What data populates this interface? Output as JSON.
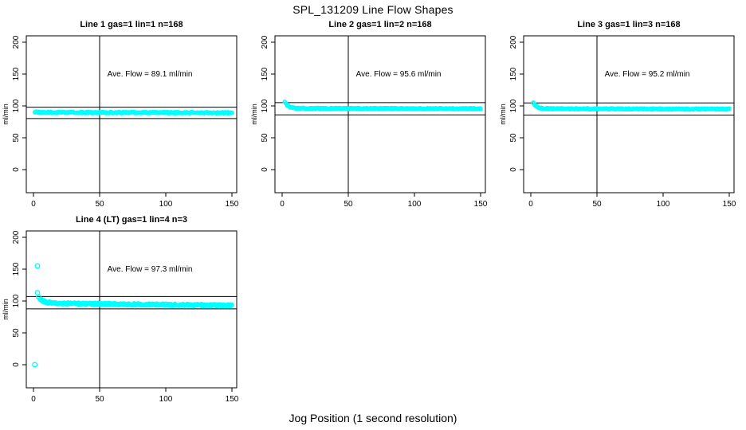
{
  "page": {
    "main_title": "SPL_131209  Line Flow Shapes",
    "outer_xlabel": "Jog Position (1 second resolution)",
    "background_color": "#ffffff"
  },
  "style": {
    "point_color": "#00ffff",
    "line_color": "#000000",
    "text_color": "#000000"
  },
  "axes": {
    "x_ticks": [
      0,
      50,
      100,
      150
    ],
    "y_ticks": [
      0,
      50,
      100,
      150,
      200
    ],
    "y_axis_label": "ml/min",
    "x_domain": [
      -5.5,
      154
    ],
    "y_domain": [
      -36,
      210
    ],
    "grid": false,
    "legend": "none"
  },
  "chart_data": [
    {
      "type": "scatter",
      "title": "Line 1 gas=1 lin=1 n=168",
      "line": 1,
      "gas": 1,
      "lin": 1,
      "n": 168,
      "annotation": "Ave. Flow =  89.1  ml/min",
      "ave_flow_ml_min": 89.1,
      "ylabel": "ml/min",
      "x_ticks": [
        0,
        50,
        100,
        150
      ],
      "y_ticks": [
        0,
        50,
        100,
        150,
        200
      ],
      "vline_x": 50,
      "hlines_y": [
        98.0,
        80.2
      ],
      "marker": "open-circle",
      "series": {
        "name": "flow",
        "x_start": 1,
        "x_end": 150,
        "x_step": 1,
        "start_value": 91,
        "settle_value": 89.8,
        "decay": 2,
        "drift_per_x": -0.004,
        "noise": 1.0,
        "passes": 2
      },
      "outliers": []
    },
    {
      "type": "scatter",
      "title": "Line 2 gas=1 lin=2 n=168",
      "line": 2,
      "gas": 1,
      "lin": 2,
      "n": 168,
      "annotation": "Ave. Flow =  95.6  ml/min",
      "ave_flow_ml_min": 95.6,
      "ylabel": "ml/min",
      "x_ticks": [
        0,
        50,
        100,
        150
      ],
      "y_ticks": [
        0,
        50,
        100,
        150,
        200
      ],
      "vline_x": 50,
      "hlines_y": [
        105.2,
        86.0
      ],
      "marker": "open-circle",
      "series": {
        "name": "flow",
        "x_start": 2,
        "x_end": 150,
        "x_step": 1,
        "start_value": 107,
        "settle_value": 96.2,
        "decay": 2.5,
        "drift_per_x": -0.004,
        "noise": 0.9,
        "passes": 2
      },
      "outliers": []
    },
    {
      "type": "scatter",
      "title": "Line 3 gas=1 lin=3 n=168",
      "line": 3,
      "gas": 1,
      "lin": 3,
      "n": 168,
      "annotation": "Ave. Flow =  95.2  ml/min",
      "ave_flow_ml_min": 95.2,
      "ylabel": "ml/min",
      "x_ticks": [
        0,
        50,
        100,
        150
      ],
      "y_ticks": [
        0,
        50,
        100,
        150,
        200
      ],
      "vline_x": 50,
      "hlines_y": [
        104.7,
        85.7
      ],
      "marker": "open-circle",
      "series": {
        "name": "flow",
        "x_start": 2,
        "x_end": 150,
        "x_step": 1,
        "start_value": 105,
        "settle_value": 95.6,
        "decay": 2.5,
        "drift_per_x": -0.004,
        "noise": 0.9,
        "passes": 2
      },
      "outliers": []
    },
    {
      "type": "scatter",
      "title": "Line 4 (LT) gas=1 lin=4 n=3",
      "line": 4,
      "line_note": "LT",
      "gas": 1,
      "lin": 4,
      "n": 3,
      "annotation": "Ave. Flow =  97.3  ml/min",
      "ave_flow_ml_min": 97.3,
      "ylabel": "ml/min",
      "x_ticks": [
        0,
        50,
        100,
        150
      ],
      "y_ticks": [
        0,
        50,
        100,
        150,
        200
      ],
      "vline_x": 50,
      "hlines_y": [
        107.0,
        87.6
      ],
      "marker": "open-circle",
      "series": {
        "name": "flow",
        "x_start": 5,
        "x_end": 150,
        "x_step": 1,
        "start_value": 103,
        "settle_value": 96.5,
        "decay": 4,
        "drift_per_x": -0.024,
        "noise": 1.8,
        "passes": 3
      },
      "outliers": [
        [
          1,
          0
        ],
        [
          3,
          155
        ],
        [
          3,
          113
        ],
        [
          4,
          106
        ]
      ]
    }
  ]
}
